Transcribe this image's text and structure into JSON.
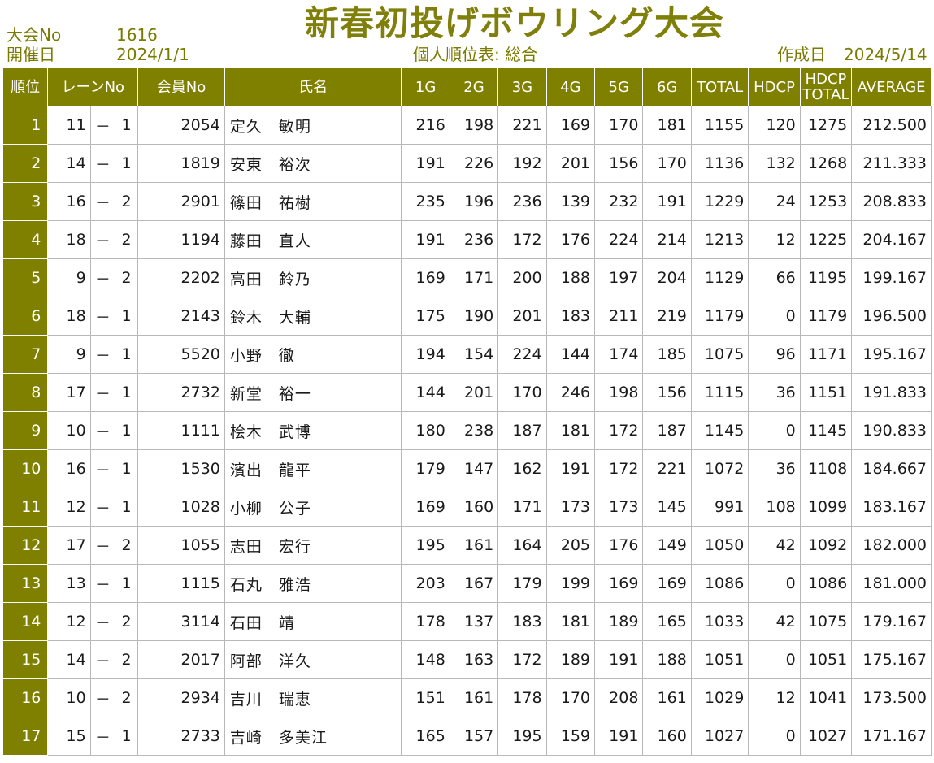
{
  "header": {
    "tournament_no_label": "大会No",
    "tournament_no": "1616",
    "date_label": "開催日",
    "date": "2024/1/1",
    "title": "新春初投げボウリング大会",
    "subtitle": "個人順位表: 総合",
    "created_label": "作成日",
    "created_date": "2024/5/14"
  },
  "columns": {
    "rank": "順位",
    "lane": "レーンNo",
    "member": "会員No",
    "name": "氏名",
    "g1": "1G",
    "g2": "2G",
    "g3": "3G",
    "g4": "4G",
    "g5": "5G",
    "g6": "6G",
    "total": "TOTAL",
    "hdcp": "HDCP",
    "hdcp_total_1": "HDCP",
    "hdcp_total_2": "TOTAL",
    "average": "AVERAGE"
  },
  "rows": [
    {
      "rank": "1",
      "lane": "11",
      "sep": "－",
      "pos": "1",
      "member": "2054",
      "name": "定久　敏明",
      "g": [
        "216",
        "198",
        "221",
        "169",
        "170",
        "181"
      ],
      "total": "1155",
      "hdcp": "120",
      "hdcp_total": "1275",
      "average": "212.500"
    },
    {
      "rank": "2",
      "lane": "14",
      "sep": "－",
      "pos": "1",
      "member": "1819",
      "name": "安東　裕次",
      "g": [
        "191",
        "226",
        "192",
        "201",
        "156",
        "170"
      ],
      "total": "1136",
      "hdcp": "132",
      "hdcp_total": "1268",
      "average": "211.333"
    },
    {
      "rank": "3",
      "lane": "16",
      "sep": "－",
      "pos": "2",
      "member": "2901",
      "name": "篠田　祐樹",
      "g": [
        "235",
        "196",
        "236",
        "139",
        "232",
        "191"
      ],
      "total": "1229",
      "hdcp": "24",
      "hdcp_total": "1253",
      "average": "208.833"
    },
    {
      "rank": "4",
      "lane": "18",
      "sep": "－",
      "pos": "2",
      "member": "1194",
      "name": "藤田　直人",
      "g": [
        "191",
        "236",
        "172",
        "176",
        "224",
        "214"
      ],
      "total": "1213",
      "hdcp": "12",
      "hdcp_total": "1225",
      "average": "204.167"
    },
    {
      "rank": "5",
      "lane": "9",
      "sep": "－",
      "pos": "2",
      "member": "2202",
      "name": "高田　鈴乃",
      "g": [
        "169",
        "171",
        "200",
        "188",
        "197",
        "204"
      ],
      "total": "1129",
      "hdcp": "66",
      "hdcp_total": "1195",
      "average": "199.167"
    },
    {
      "rank": "6",
      "lane": "18",
      "sep": "－",
      "pos": "1",
      "member": "2143",
      "name": "鈴木　大輔",
      "g": [
        "175",
        "190",
        "201",
        "183",
        "211",
        "219"
      ],
      "total": "1179",
      "hdcp": "0",
      "hdcp_total": "1179",
      "average": "196.500"
    },
    {
      "rank": "7",
      "lane": "9",
      "sep": "－",
      "pos": "1",
      "member": "5520",
      "name": "小野　徹",
      "g": [
        "194",
        "154",
        "224",
        "144",
        "174",
        "185"
      ],
      "total": "1075",
      "hdcp": "96",
      "hdcp_total": "1171",
      "average": "195.167"
    },
    {
      "rank": "8",
      "lane": "17",
      "sep": "－",
      "pos": "1",
      "member": "2732",
      "name": "新堂　裕一",
      "g": [
        "144",
        "201",
        "170",
        "246",
        "198",
        "156"
      ],
      "total": "1115",
      "hdcp": "36",
      "hdcp_total": "1151",
      "average": "191.833"
    },
    {
      "rank": "9",
      "lane": "10",
      "sep": "－",
      "pos": "1",
      "member": "1111",
      "name": "桧木　武博",
      "g": [
        "180",
        "238",
        "187",
        "181",
        "172",
        "187"
      ],
      "total": "1145",
      "hdcp": "0",
      "hdcp_total": "1145",
      "average": "190.833"
    },
    {
      "rank": "10",
      "lane": "16",
      "sep": "－",
      "pos": "1",
      "member": "1530",
      "name": "濱出　龍平",
      "g": [
        "179",
        "147",
        "162",
        "191",
        "172",
        "221"
      ],
      "total": "1072",
      "hdcp": "36",
      "hdcp_total": "1108",
      "average": "184.667"
    },
    {
      "rank": "11",
      "lane": "12",
      "sep": "－",
      "pos": "1",
      "member": "1028",
      "name": "小柳　公子",
      "g": [
        "169",
        "160",
        "171",
        "173",
        "173",
        "145"
      ],
      "total": "991",
      "hdcp": "108",
      "hdcp_total": "1099",
      "average": "183.167"
    },
    {
      "rank": "12",
      "lane": "17",
      "sep": "－",
      "pos": "2",
      "member": "1055",
      "name": "志田　宏行",
      "g": [
        "195",
        "161",
        "164",
        "205",
        "176",
        "149"
      ],
      "total": "1050",
      "hdcp": "42",
      "hdcp_total": "1092",
      "average": "182.000"
    },
    {
      "rank": "13",
      "lane": "13",
      "sep": "－",
      "pos": "1",
      "member": "1115",
      "name": "石丸　雅浩",
      "g": [
        "203",
        "167",
        "179",
        "199",
        "169",
        "169"
      ],
      "total": "1086",
      "hdcp": "0",
      "hdcp_total": "1086",
      "average": "181.000"
    },
    {
      "rank": "14",
      "lane": "12",
      "sep": "－",
      "pos": "2",
      "member": "3114",
      "name": "石田　靖",
      "g": [
        "178",
        "137",
        "183",
        "181",
        "189",
        "165"
      ],
      "total": "1033",
      "hdcp": "42",
      "hdcp_total": "1075",
      "average": "179.167"
    },
    {
      "rank": "15",
      "lane": "14",
      "sep": "－",
      "pos": "2",
      "member": "2017",
      "name": "阿部　洋久",
      "g": [
        "148",
        "163",
        "172",
        "189",
        "191",
        "188"
      ],
      "total": "1051",
      "hdcp": "0",
      "hdcp_total": "1051",
      "average": "175.167"
    },
    {
      "rank": "16",
      "lane": "10",
      "sep": "－",
      "pos": "2",
      "member": "2934",
      "name": "吉川　瑞恵",
      "g": [
        "151",
        "161",
        "178",
        "170",
        "208",
        "161"
      ],
      "total": "1029",
      "hdcp": "12",
      "hdcp_total": "1041",
      "average": "173.500"
    },
    {
      "rank": "17",
      "lane": "15",
      "sep": "－",
      "pos": "1",
      "member": "2733",
      "name": "吉崎　多美江",
      "g": [
        "165",
        "157",
        "195",
        "159",
        "191",
        "160"
      ],
      "total": "1027",
      "hdcp": "0",
      "hdcp_total": "1027",
      "average": "171.167"
    }
  ],
  "colors": {
    "header_bg": "#808000",
    "title": "#7f7f0a"
  }
}
